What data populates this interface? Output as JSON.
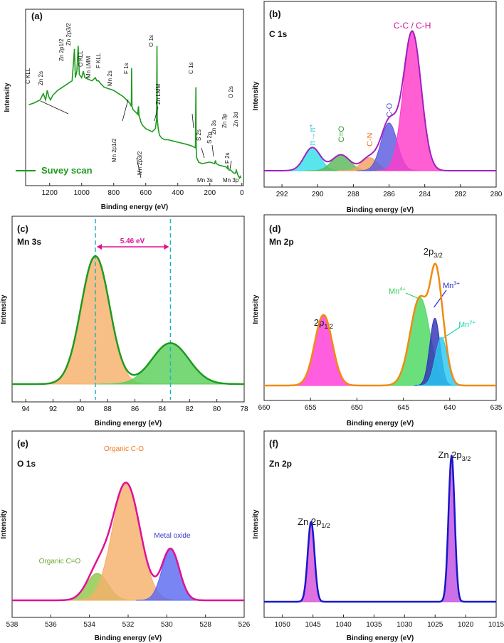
{
  "figure": {
    "panels": [
      {
        "id": "a",
        "label": "(a)",
        "title": "",
        "type": "line",
        "xlabel": "Binding energy (eV)",
        "ylabel": "Intensity",
        "xlim": [
          1350,
          -10
        ],
        "xticks": [
          1200,
          1000,
          800,
          600,
          400,
          200,
          0
        ],
        "series": [
          {
            "name": "Suvey scan",
            "color": "#1e9a1e",
            "x": [
              1330,
              1300,
              1260,
              1240,
              1225,
              1215,
              1205,
              1195,
              1180,
              1150,
              1120,
              1090,
              1060,
              1045,
              1040,
              1030,
              1022,
              1015,
              1000,
              990,
              980,
              960,
              935,
              915,
              905,
              895,
              880,
              860,
              800,
              770,
              740,
              720,
              700,
              690,
              688,
              686,
              680,
              660,
              640,
              650,
              645,
              642,
              635,
              630,
              620,
              600,
              560,
              540,
              532,
              530,
              528,
              522,
              515,
              500,
              480,
              460,
              420,
              380,
              340,
              310,
              290,
              287,
              285,
              283,
              270,
              250,
              200,
              170,
              165,
              160,
              140,
              100,
              90,
              88,
              85,
              80,
              70,
              50,
              40,
              35,
              25,
              15,
              10,
              5
            ],
            "y": [
              49,
              50,
              52,
              56,
              52,
              58,
              54,
              52,
              55,
              58,
              60,
              62,
              64,
              84,
              66,
              70,
              86,
              68,
              66,
              70,
              66,
              65,
              64,
              66,
              64,
              64,
              62,
              60,
              58,
              56,
              54,
              52,
              50,
              48,
              72,
              48,
              46,
              44,
              42,
              44,
              48,
              42,
              40,
              38,
              36,
              34,
              32,
              34,
              40,
              86,
              40,
              34,
              30,
              28,
              27,
              27,
              26,
              25,
              24,
              23,
              22,
              60,
              22,
              16,
              13,
              12,
              13,
              12,
              14,
              12,
              11,
              10,
              9,
              11,
              9,
              8,
              8,
              6,
              6,
              8,
              5,
              3,
              4,
              3
            ]
          }
        ],
        "annotations": [
          "C KLL",
          "Zn 2s",
          "Zn 2p1/2",
          "Zn 2p3/2",
          "O KLL",
          "Mn LMM",
          "F KLL",
          "Mn 2s",
          "F 1s",
          "Mn 2p1/2",
          "Mn 2p3/2",
          "O 1s",
          "Zn LMM",
          "C 1s",
          "S 2s",
          "S 2p",
          "Mn 3s",
          "Zn 3s",
          "Zn 3p",
          "F 2s",
          "O 2s",
          "Mn 3p",
          "Zn 3d"
        ]
      },
      {
        "id": "b",
        "label": "(b)",
        "title": "C 1s",
        "type": "area",
        "xlabel": "Binding energy (eV)",
        "ylabel": "Intensity",
        "xlim": [
          293,
          280
        ],
        "xticks": [
          292,
          290,
          288,
          286,
          284,
          282,
          280
        ],
        "baseline": 5,
        "envelope_color": "#a020c0",
        "peaks": [
          {
            "name": "π→π*",
            "center": 290.3,
            "sigma": 0.45,
            "height": 16,
            "color": "#33e0e8",
            "label_color": "#33c8d0"
          },
          {
            "name": "C=O",
            "center": 288.7,
            "sigma": 0.5,
            "height": 11,
            "color": "#5ab85a",
            "label_color": "#2a9a2a"
          },
          {
            "name": "C-N",
            "center": 287.1,
            "sigma": 0.45,
            "height": 9,
            "color": "#f5a060",
            "label_color": "#f07820"
          },
          {
            "name": "C-O",
            "center": 286.0,
            "sigma": 0.45,
            "height": 33,
            "color": "#5b5be0",
            "label_color": "#5050d0"
          },
          {
            "name": "C-C / C-H",
            "center": 284.7,
            "sigma": 0.5,
            "height": 96,
            "color": "#ff3cc8",
            "label_color": "#d0109a"
          }
        ]
      },
      {
        "id": "c",
        "label": "(c)",
        "title": "Mn 3s",
        "type": "area",
        "xlabel": "Binding energy (eV)",
        "ylabel": "Intensity",
        "xlim": [
          95,
          78
        ],
        "xticks": [
          94,
          92,
          90,
          88,
          86,
          84,
          82,
          80,
          78
        ],
        "baseline": 8,
        "envelope_color": "#1e9a1e",
        "peaks": [
          {
            "name": "",
            "center": 88.9,
            "sigma": 1.05,
            "height": 78,
            "color": "#f5b06a"
          },
          {
            "name": "",
            "center": 83.4,
            "sigma": 1.35,
            "height": 25,
            "color": "#5ad05a"
          }
        ],
        "splitting_label": "5.46 eV",
        "splitting_lines": [
          88.9,
          83.4
        ]
      },
      {
        "id": "d",
        "label": "(d)",
        "title": "Mn 2p",
        "type": "area",
        "xlabel": "Binding energy (eV)",
        "ylabel": "Intensity",
        "xlim": [
          660,
          635
        ],
        "xticks": [
          660,
          655,
          650,
          645,
          640,
          635
        ],
        "baseline": 3,
        "envelope_color": "#f08a10",
        "peaks": [
          {
            "name": "2p1/2",
            "center": 653.6,
            "sigma": 0.95,
            "height": 44,
            "color": "#ff3cd8"
          },
          {
            "name": "Mn4+",
            "center": 643.2,
            "sigma": 1.05,
            "height": 55,
            "color": "#4cd860",
            "label_color": "#2fd050"
          },
          {
            "name": "Mn3+",
            "center": 641.6,
            "sigma": 0.55,
            "height": 42,
            "color": "#3232b8",
            "label_color": "#2a2ad0"
          },
          {
            "name": "Mn2+",
            "center": 640.9,
            "sigma": 0.65,
            "height": 30,
            "color": "#28c8f0",
            "label_color": "#20d8b0"
          }
        ],
        "main_label": "2p3/2"
      },
      {
        "id": "e",
        "label": "(e)",
        "title": "O 1s",
        "type": "area",
        "xlabel": "Binding energy (eV)",
        "ylabel": "Intensity",
        "xlim": [
          538,
          526
        ],
        "xticks": [
          538,
          536,
          534,
          532,
          530,
          528,
          526
        ],
        "baseline": 3,
        "envelope_color": "#e0109a",
        "peaks": [
          {
            "name": "Organic C=O",
            "center": 533.6,
            "sigma": 0.55,
            "height": 18,
            "color": "#8ec848",
            "label_color": "#6aa830"
          },
          {
            "name": "Organic C-O",
            "center": 532.1,
            "sigma": 0.72,
            "height": 78,
            "color": "#f5b06a",
            "label_color": "#f07820"
          },
          {
            "name": "Metal oxide",
            "center": 529.8,
            "sigma": 0.45,
            "height": 34,
            "color": "#5b6af0",
            "label_color": "#3a3ad0"
          }
        ]
      },
      {
        "id": "f",
        "label": "(f)",
        "title": "Zn 2p",
        "type": "area",
        "xlabel": "Binding energy (eV)",
        "ylabel": "Intensity",
        "xlim": [
          1053,
          1015
        ],
        "xticks": [
          1050,
          1045,
          1040,
          1035,
          1030,
          1025,
          1020,
          1015
        ],
        "baseline": 2,
        "envelope_color": "#1818c8",
        "peaks": [
          {
            "name": "Zn 2p1/2",
            "center": 1045.3,
            "sigma": 0.55,
            "height": 52,
            "color": "#d850d8"
          },
          {
            "name": "Zn 2p3/2",
            "center": 1022.3,
            "sigma": 0.5,
            "height": 95,
            "color": "#c050e0"
          }
        ]
      }
    ]
  },
  "chart_data": [
    {
      "type": "line",
      "panel": "(a)",
      "title": "",
      "xlabel": "Binding energy (eV)",
      "ylabel": "Intensity",
      "legend": [
        "Suvey scan"
      ],
      "xlim": [
        1350,
        -10
      ],
      "peak_labels": [
        "C KLL",
        "Zn 2s",
        "Zn 2p1/2",
        "Zn 2p3/2",
        "O KLL",
        "Mn LMM",
        "F KLL",
        "Mn 2s",
        "F 1s",
        "Mn 2p1/2",
        "Mn 2p3/2",
        "O 1s",
        "Zn LMM",
        "C 1s",
        "S 2s",
        "S 2p",
        "Mn 3s",
        "Zn 3s",
        "Zn 3p",
        "F 2s",
        "O 2s",
        "Mn 3p",
        "Zn 3d"
      ]
    },
    {
      "type": "area",
      "panel": "(b)",
      "title": "C 1s",
      "xlabel": "Binding energy (eV)",
      "ylabel": "Intensity",
      "xlim": [
        293,
        280
      ],
      "components": {
        "π→π*": 290.3,
        "C=O": 288.7,
        "C-N": 287.1,
        "C-O": 286.0,
        "C-C / C-H": 284.7
      }
    },
    {
      "type": "area",
      "panel": "(c)",
      "title": "Mn 3s",
      "xlabel": "Binding energy (eV)",
      "ylabel": "Intensity",
      "xlim": [
        95,
        78
      ],
      "peaks_eV": [
        88.9,
        83.4
      ],
      "splitting": "5.46 eV"
    },
    {
      "type": "area",
      "panel": "(d)",
      "title": "Mn 2p",
      "xlabel": "Binding energy (eV)",
      "ylabel": "Intensity",
      "xlim": [
        660,
        635
      ],
      "components": {
        "2p1/2": 653.6,
        "Mn4+": 643.2,
        "Mn3+": 641.6,
        "Mn2+": 640.9
      }
    },
    {
      "type": "area",
      "panel": "(e)",
      "title": "O 1s",
      "xlabel": "Binding energy (eV)",
      "ylabel": "Intensity",
      "xlim": [
        538,
        526
      ],
      "components": {
        "Organic C=O": 533.6,
        "Organic C-O": 532.1,
        "Metal oxide": 529.8
      }
    },
    {
      "type": "area",
      "panel": "(f)",
      "title": "Zn 2p",
      "xlabel": "Binding energy (eV)",
      "ylabel": "Intensity",
      "xlim": [
        1053,
        1015
      ],
      "components": {
        "Zn 2p1/2": 1045.3,
        "Zn 2p3/2": 1022.3
      }
    }
  ]
}
